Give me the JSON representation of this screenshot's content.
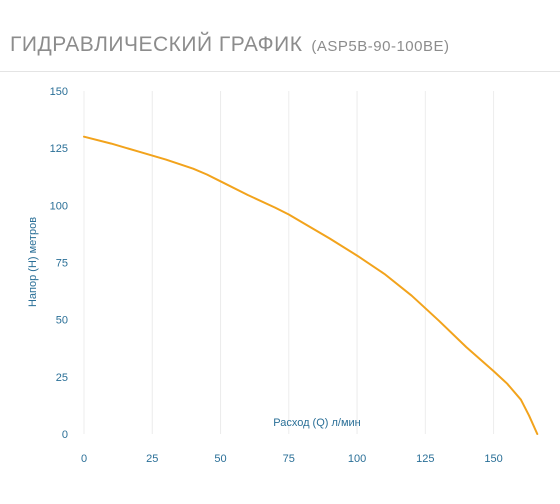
{
  "header": {
    "title": "ГИДРАВЛИЧЕСКИЙ ГРАФИК",
    "model": "(ASP5B-90-100BE)"
  },
  "colors": {
    "line": "#f2a31c",
    "axis_text": "#2a6f97",
    "grid": "#ececec",
    "title": "#8c8c8c"
  },
  "chart_data": {
    "type": "line",
    "title": "ГИДРАВЛИЧЕСКИЙ ГРАФИК (ASP5B-90-100BE)",
    "xlabel": "Расход (Q) л/мин",
    "ylabel": "Напор (Н) метров",
    "xlim": [
      0,
      167
    ],
    "ylim": [
      0,
      150
    ],
    "xticks": [
      0,
      25,
      50,
      75,
      100,
      125,
      150
    ],
    "yticks": [
      0,
      25,
      50,
      75,
      100,
      125,
      150
    ],
    "grid": "vertical",
    "legend": "none",
    "series": [
      {
        "points": [
          [
            0,
            130
          ],
          [
            10,
            127
          ],
          [
            20,
            123.5
          ],
          [
            30,
            120
          ],
          [
            40,
            116
          ],
          [
            45,
            113.5
          ],
          [
            50,
            110.5
          ],
          [
            60,
            104.5
          ],
          [
            70,
            99
          ],
          [
            75,
            96
          ],
          [
            80,
            92.5
          ],
          [
            90,
            85.5
          ],
          [
            100,
            78
          ],
          [
            110,
            70
          ],
          [
            120,
            60.5
          ],
          [
            125,
            55
          ],
          [
            130,
            49.5
          ],
          [
            140,
            38
          ],
          [
            150,
            27.5
          ],
          [
            155,
            22
          ],
          [
            160,
            15
          ],
          [
            163,
            8
          ],
          [
            166,
            0
          ]
        ]
      }
    ]
  }
}
